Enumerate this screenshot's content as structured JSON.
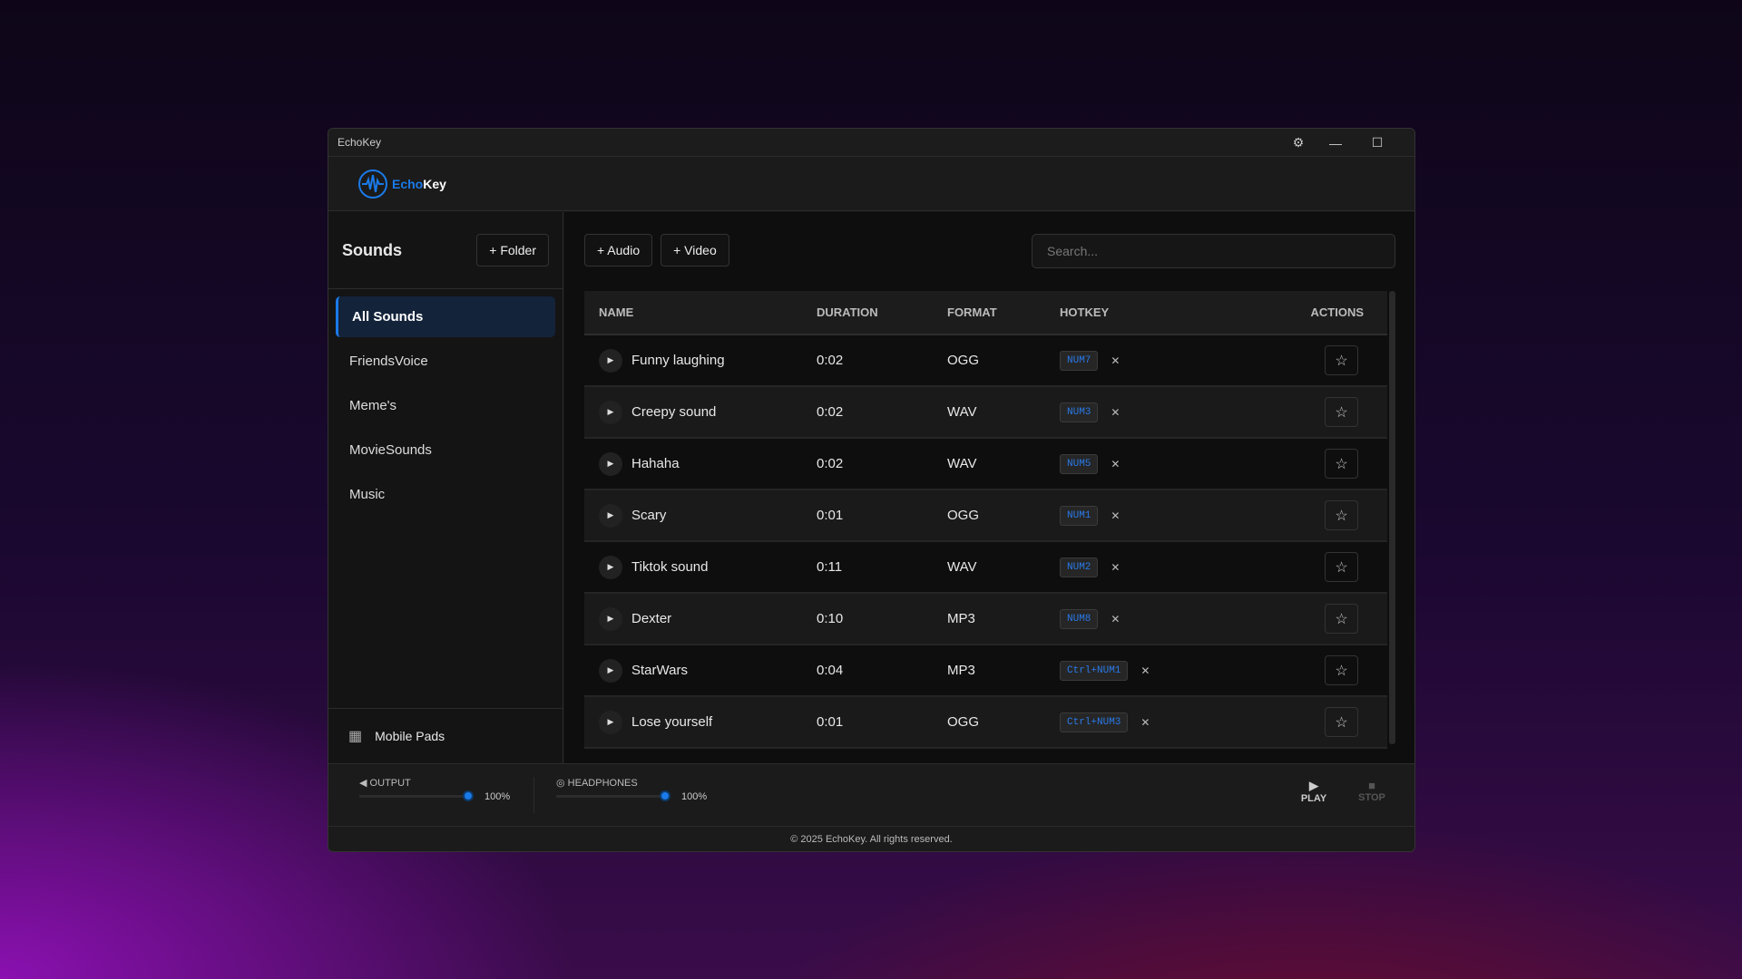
{
  "window": {
    "title": "EchoKey"
  },
  "logo": {
    "part1": "Echo",
    "part2": "Key",
    "accent": "#1a7ae8"
  },
  "sidebar": {
    "title": "Sounds",
    "add_folder": "+ Folder",
    "items": [
      {
        "label": "All Sounds",
        "active": true
      },
      {
        "label": "FriendsVoice"
      },
      {
        "label": "Meme's"
      },
      {
        "label": "MovieSounds"
      },
      {
        "label": "Music"
      }
    ],
    "footer": "Mobile Pads"
  },
  "toolbar": {
    "add_audio": "+ Audio",
    "add_video": "+ Video",
    "search_placeholder": "Search..."
  },
  "table": {
    "headers": [
      "NAME",
      "DURATION",
      "FORMAT",
      "HOTKEY",
      "ACTIONS"
    ],
    "rows": [
      {
        "name": "Funny laughing",
        "duration": "0:02",
        "format": "OGG",
        "hotkey": "NUM7"
      },
      {
        "name": "Creepy sound",
        "duration": "0:02",
        "format": "WAV",
        "hotkey": "NUM3"
      },
      {
        "name": "Hahaha",
        "duration": "0:02",
        "format": "WAV",
        "hotkey": "NUM5"
      },
      {
        "name": "Scary",
        "duration": "0:01",
        "format": "OGG",
        "hotkey": "NUM1"
      },
      {
        "name": "Tiktok sound",
        "duration": "0:11",
        "format": "WAV",
        "hotkey": "NUM2"
      },
      {
        "name": "Dexter",
        "duration": "0:10",
        "format": "MP3",
        "hotkey": "NUM8"
      },
      {
        "name": "StarWars",
        "duration": "0:04",
        "format": "MP3",
        "hotkey": "Ctrl+NUM1"
      },
      {
        "name": "Lose yourself",
        "duration": "0:01",
        "format": "OGG",
        "hotkey": "Ctrl+NUM3"
      }
    ]
  },
  "player": {
    "output_label": "OUTPUT",
    "output_volume": "100%",
    "headphones_label": "HEADPHONES",
    "headphones_volume": "100%",
    "play": "PLAY",
    "stop": "STOP"
  },
  "footer": "© 2025 EchoKey. All rights reserved."
}
